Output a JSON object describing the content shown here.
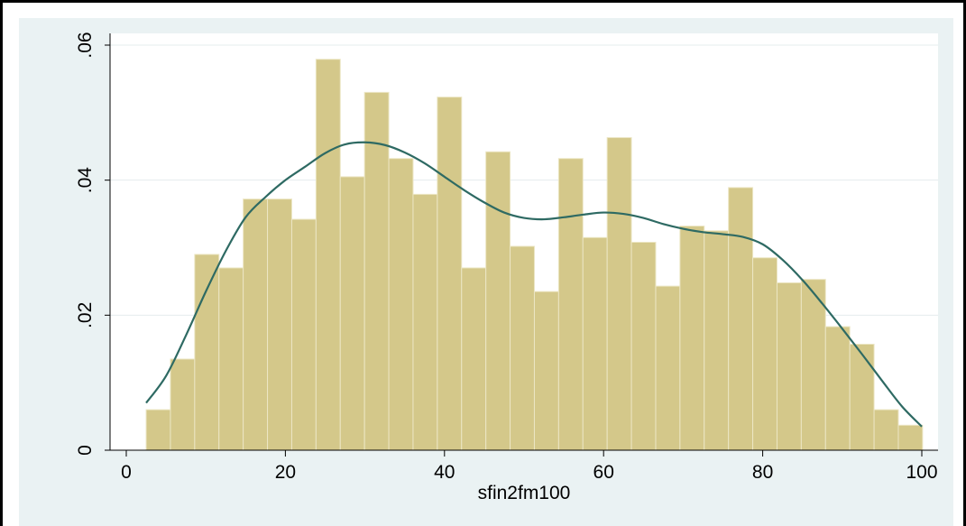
{
  "chart_data": {
    "type": "bar",
    "subtype": "histogram-with-density",
    "xlabel": "sfin2fm100",
    "ylabel": "",
    "xlim": [
      0,
      100
    ],
    "ylim": [
      0,
      0.06
    ],
    "x_ticks": [
      0,
      20,
      40,
      60,
      80,
      100
    ],
    "x_tick_labels": [
      "0",
      "20",
      "40",
      "60",
      "80",
      "100"
    ],
    "y_ticks": [
      0,
      0.02,
      0.04,
      0.06
    ],
    "y_tick_labels": [
      "0",
      ".02",
      ".04",
      ".06"
    ],
    "grid": "horizontal",
    "legend": "none",
    "bin_width": 3.05,
    "bin_start": 2.5,
    "values": [
      0.006,
      0.0135,
      0.029,
      0.027,
      0.0372,
      0.0372,
      0.0342,
      0.0579,
      0.0405,
      0.053,
      0.0432,
      0.0379,
      0.0523,
      0.027,
      0.0442,
      0.0302,
      0.0235,
      0.0432,
      0.0315,
      0.0463,
      0.0308,
      0.0243,
      0.0332,
      0.0325,
      0.0389,
      0.0285,
      0.0248,
      0.0253,
      0.0183,
      0.0157,
      0.006,
      0.0037
    ],
    "density": {
      "x": [
        2.5,
        5,
        7.5,
        10,
        12.5,
        15,
        17.5,
        20,
        22.5,
        25,
        27.5,
        30,
        32.5,
        35,
        37.5,
        40,
        42.5,
        45,
        47.5,
        50,
        52.5,
        55,
        57.5,
        60,
        62.5,
        65,
        67.5,
        70,
        72.5,
        75,
        77.5,
        80,
        82.5,
        85,
        87.5,
        90,
        92.5,
        95,
        97.5,
        100
      ],
      "y": [
        0.007,
        0.011,
        0.017,
        0.0235,
        0.0295,
        0.0345,
        0.0375,
        0.04,
        0.042,
        0.044,
        0.0453,
        0.0456,
        0.0452,
        0.0441,
        0.0425,
        0.0405,
        0.0385,
        0.0367,
        0.0352,
        0.0344,
        0.0342,
        0.0345,
        0.0349,
        0.0352,
        0.035,
        0.0344,
        0.0335,
        0.0328,
        0.0323,
        0.032,
        0.0316,
        0.0305,
        0.0282,
        0.0252,
        0.0217,
        0.018,
        0.0142,
        0.0103,
        0.0065,
        0.0035
      ]
    },
    "colors": {
      "bar_fill": "#d4c88a",
      "bar_stroke": "#ece6c4",
      "density_line": "#2e6a63",
      "plot_background": "#eaf2f3",
      "gridline": "#e4ecee",
      "axis": "#000000"
    }
  }
}
